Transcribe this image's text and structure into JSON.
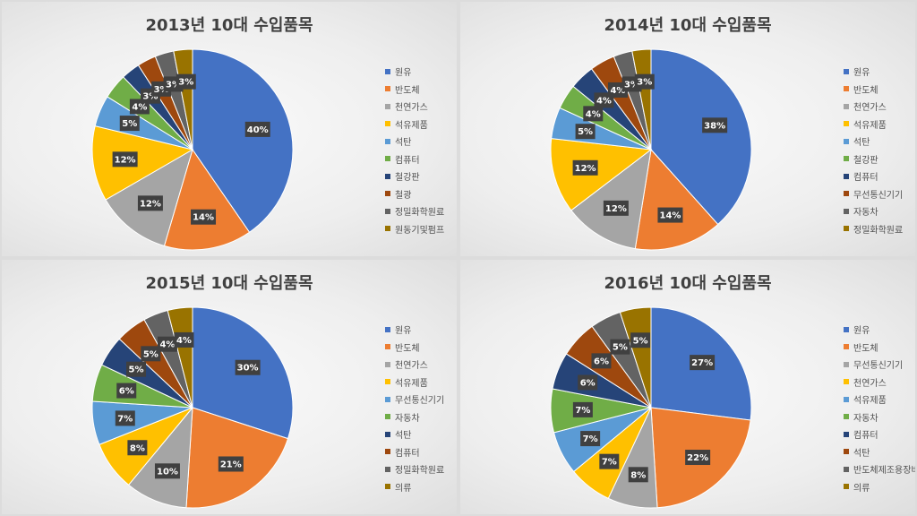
{
  "chart_data": [
    {
      "type": "pie",
      "title": "2013년 10대 수입품목",
      "labels": [
        "원유",
        "반도체",
        "천연가스",
        "석유제품",
        "석탄",
        "컴퓨터",
        "철강판",
        "철광",
        "정밀화학원료",
        "원동기및펌프"
      ],
      "values": [
        40,
        14,
        12,
        12,
        5,
        4,
        3,
        3,
        3,
        3
      ],
      "colors": [
        "#4472c4",
        "#ed7d31",
        "#a5a5a5",
        "#ffc000",
        "#5b9bd5",
        "#70ad47",
        "#264478",
        "#9e480e",
        "#636363",
        "#997300"
      ],
      "label_suffix": "%"
    },
    {
      "type": "pie",
      "title": "2014년 10대 수입품목",
      "labels": [
        "원유",
        "반도체",
        "천연가스",
        "석유제품",
        "석탄",
        "철강판",
        "컴퓨터",
        "무선통신기기",
        "자동차",
        "정밀화학원료"
      ],
      "values": [
        38,
        14,
        12,
        12,
        5,
        4,
        4,
        4,
        3,
        3
      ],
      "colors": [
        "#4472c4",
        "#ed7d31",
        "#a5a5a5",
        "#ffc000",
        "#5b9bd5",
        "#70ad47",
        "#264478",
        "#9e480e",
        "#636363",
        "#997300"
      ],
      "label_suffix": "%"
    },
    {
      "type": "pie",
      "title": "2015년 10대 수입품목",
      "labels": [
        "원유",
        "반도체",
        "천연가스",
        "석유제품",
        "무선통신기기",
        "자동차",
        "석탄",
        "컴퓨터",
        "정밀화학원료",
        "의류"
      ],
      "values": [
        30,
        21,
        10,
        8,
        7,
        6,
        5,
        5,
        4,
        4
      ],
      "colors": [
        "#4472c4",
        "#ed7d31",
        "#a5a5a5",
        "#ffc000",
        "#5b9bd5",
        "#70ad47",
        "#264478",
        "#9e480e",
        "#636363",
        "#997300"
      ],
      "label_suffix": "%"
    },
    {
      "type": "pie",
      "title": "2016년 10대 수입품목",
      "labels": [
        "원유",
        "반도체",
        "무선통신기기",
        "천연가스",
        "석유제품",
        "자동차",
        "컴퓨터",
        "석탄",
        "반도체제조용장비",
        "의류"
      ],
      "values": [
        27,
        22,
        8,
        7,
        7,
        7,
        6,
        6,
        5,
        5
      ],
      "colors": [
        "#4472c4",
        "#ed7d31",
        "#a5a5a5",
        "#ffc000",
        "#5b9bd5",
        "#70ad47",
        "#264478",
        "#9e480e",
        "#636363",
        "#997300"
      ],
      "label_suffix": "%"
    }
  ]
}
